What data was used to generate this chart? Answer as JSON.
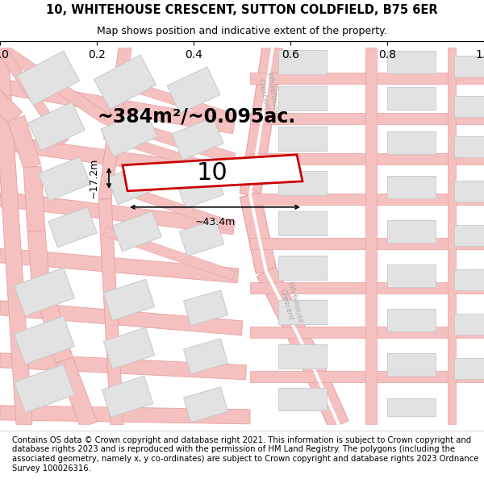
{
  "title_line1": "10, WHITEHOUSE CRESCENT, SUTTON COLDFIELD, B75 6ER",
  "title_line2": "Map shows position and indicative extent of the property.",
  "footer_text": "Contains OS data © Crown copyright and database right 2021. This information is subject to Crown copyright and database rights 2023 and is reproduced with the permission of HM Land Registry. The polygons (including the associated geometry, namely x, y co-ordinates) are subject to Crown copyright and database rights 2023 Ordnance Survey 100026316.",
  "area_label": "~384m²/~0.095ac.",
  "number_label": "10",
  "width_label": "~43.4m",
  "height_label": "~17.2m",
  "map_bg": "#f7f7f7",
  "road_color": "#f5c0c0",
  "road_edge_color": "#e8a0a0",
  "block_color": "#e2e2e2",
  "block_edge_color": "#c8c8c8",
  "highlight_color": "#cc0000",
  "text_color": "#000000",
  "road_text_color": "#aaaaaa",
  "title_fontsize": 10.5,
  "subtitle_fontsize": 9,
  "footer_fontsize": 7.2,
  "area_fontsize": 17,
  "number_fontsize": 22,
  "measure_fontsize": 9,
  "road_label_fontsize": 6.5
}
